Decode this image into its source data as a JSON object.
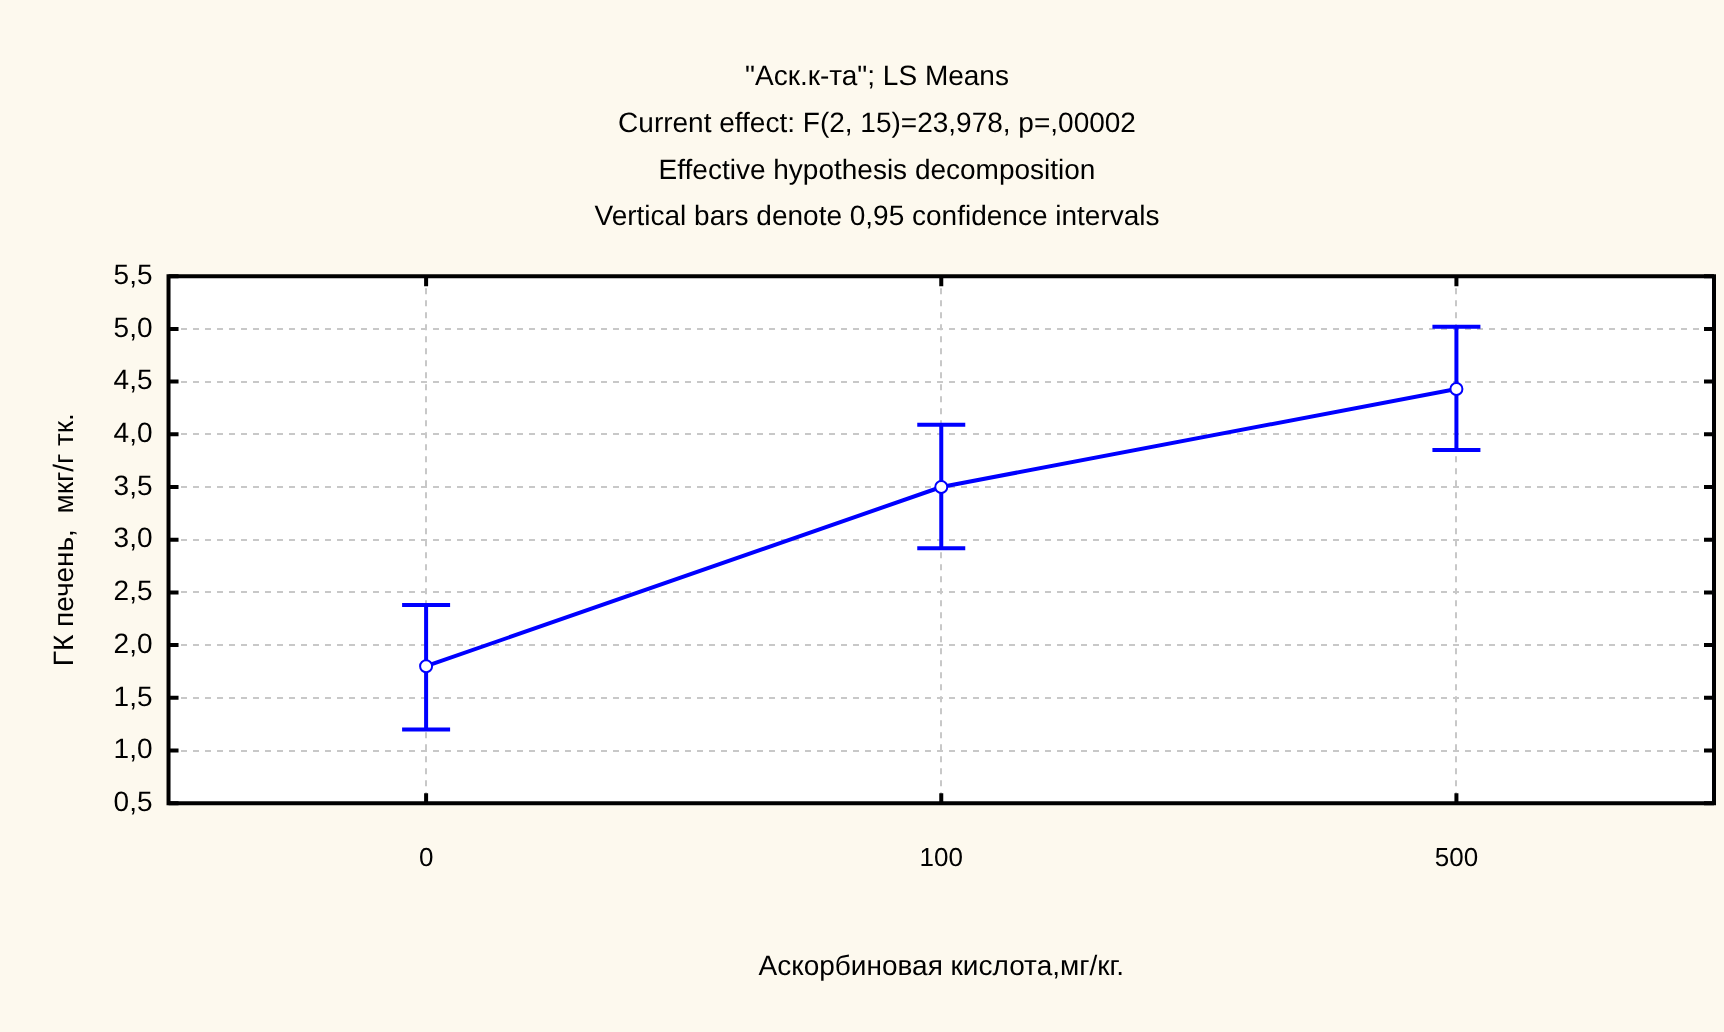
{
  "chart_data": {
    "type": "line",
    "title": "\"Аск.к-та\"; LS Means",
    "subtitle": "Current effect: F(2, 15)=23,978, p=,00002",
    "annotations": [
      "Effective hypothesis decomposition",
      "Vertical bars denote 0,95 confidence intervals"
    ],
    "xlabel": "Аскорбиновая кислота,мг/кг.",
    "ylabel": "ГК печень,  мкг/г тк.",
    "categories": [
      "0",
      "100",
      "500"
    ],
    "series": [
      {
        "color": "#0000ff",
        "values": [
          1.8,
          3.5,
          4.43
        ],
        "errors": [
          [
            1.2,
            2.38
          ],
          [
            2.92,
            4.09
          ],
          [
            3.85,
            5.02
          ]
        ]
      }
    ],
    "ylim": [
      0.5,
      5.5
    ],
    "yticks": [
      {
        "value": 0.5,
        "label": "0,5"
      },
      {
        "value": 1,
        "label": "1,0"
      },
      {
        "value": 1.5,
        "label": "1,5"
      },
      {
        "value": 2,
        "label": "2,0"
      },
      {
        "value": 2.5,
        "label": "2,5"
      },
      {
        "value": 3,
        "label": "3,0"
      },
      {
        "value": 3.5,
        "label": "3,5"
      },
      {
        "value": 4,
        "label": "4,0"
      },
      {
        "value": 4.5,
        "label": "4,5"
      },
      {
        "value": 5,
        "label": "5,0"
      },
      {
        "value": 5.5,
        "label": "5,5"
      }
    ],
    "grid": true,
    "marker": "circle",
    "line_style": "solid",
    "legend": false
  }
}
